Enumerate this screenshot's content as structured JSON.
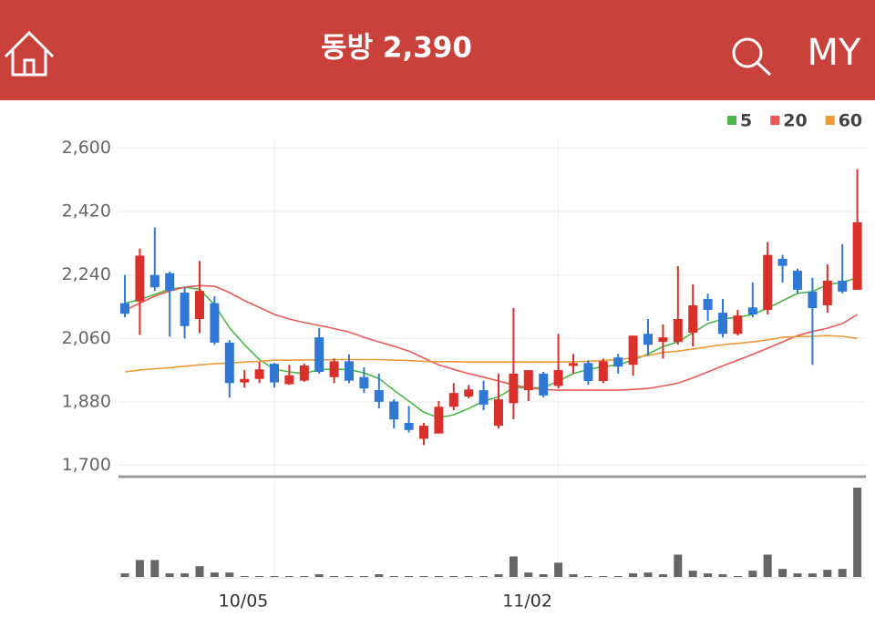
{
  "header": {
    "title": "동방 2,390",
    "my": "MY"
  },
  "chart_data": {
    "type": "candlestick",
    "categories": [
      null,
      null,
      null,
      null,
      null,
      null,
      null,
      null,
      null,
      null,
      "10/05",
      null,
      null,
      null,
      null,
      null,
      null,
      null,
      null,
      null,
      null,
      null,
      null,
      null,
      null,
      null,
      null,
      null,
      null,
      "11/02",
      null,
      null,
      null,
      null,
      null,
      null,
      null,
      null,
      null,
      null,
      null,
      null,
      null,
      null,
      null,
      null,
      null,
      null,
      null,
      null
    ],
    "open": [
      2160,
      2165,
      2240,
      2245,
      2190,
      2115,
      2160,
      2048,
      1935,
      1945,
      1988,
      1930,
      1940,
      2063,
      1950,
      1995,
      1950,
      1913,
      1881,
      1820,
      1775,
      1790,
      1866,
      1895,
      1913,
      1812,
      1876,
      1913,
      1960,
      1925,
      1982,
      1990,
      1939,
      2006,
      1985,
      2073,
      2050,
      2050,
      2076,
      2172,
      2133,
      2073,
      2148,
      2141,
      2286,
      2252,
      2193,
      2154,
      2224,
      2198
    ],
    "high": [
      2240,
      2315,
      2375,
      2250,
      2205,
      2280,
      2180,
      2055,
      1970,
      1993,
      1990,
      1985,
      1988,
      2090,
      2003,
      2015,
      1978,
      1960,
      1887,
      1868,
      1820,
      1882,
      1933,
      1928,
      1940,
      1960,
      2146,
      1970,
      1965,
      2073,
      2016,
      1998,
      2003,
      2016,
      2068,
      2115,
      2100,
      2265,
      2213,
      2187,
      2172,
      2141,
      2219,
      2333,
      2297,
      2258,
      2232,
      2270,
      2328,
      2540
    ],
    "low": [
      2120,
      2070,
      2195,
      2065,
      2060,
      2075,
      2042,
      1892,
      1920,
      1933,
      1920,
      1928,
      1937,
      1960,
      1933,
      1933,
      1905,
      1861,
      1805,
      1793,
      1757,
      1790,
      1856,
      1890,
      1856,
      1804,
      1830,
      1882,
      1892,
      1918,
      1960,
      1928,
      1933,
      1960,
      1954,
      2011,
      2003,
      2042,
      2037,
      2110,
      2063,
      2068,
      2120,
      2128,
      2219,
      2188,
      1985,
      2133,
      2188,
      2198
    ],
    "close": [
      2130,
      2295,
      2205,
      2195,
      2095,
      2195,
      2048,
      1933,
      1945,
      1972,
      1935,
      1955,
      1983,
      1965,
      1995,
      1940,
      1918,
      1880,
      1830,
      1800,
      1812,
      1866,
      1905,
      1915,
      1872,
      1887,
      1960,
      1970,
      1898,
      1970,
      1990,
      1939,
      1995,
      1980,
      2068,
      2042,
      2063,
      2115,
      2154,
      2141,
      2073,
      2125,
      2128,
      2297,
      2266,
      2198,
      2146,
      2224,
      2193,
      2390
    ],
    "up_color": "#d9302c",
    "down_color": "#2f78d3",
    "series": [
      {
        "name": "5",
        "color": "#4cb84a",
        "values": [
          2160,
          2170,
          2185,
          2200,
          2205,
          2200,
          2155,
          2090,
          2042,
          2000,
          1972,
          1965,
          1960,
          1972,
          1972,
          1972,
          1962,
          1946,
          1913,
          1882,
          1850,
          1835,
          1843,
          1861,
          1882,
          1894,
          1920,
          1920,
          1920,
          1939,
          1960,
          1972,
          1980,
          1985,
          1998,
          2016,
          2037,
          2050,
          2076,
          2102,
          2115,
          2120,
          2128,
          2146,
          2167,
          2188,
          2193,
          2213,
          2219,
          2232
        ]
      },
      {
        "name": "20",
        "color": "#ea5a55",
        "values": [
          2140,
          2160,
          2180,
          2195,
          2205,
          2210,
          2208,
          2190,
          2167,
          2148,
          2128,
          2115,
          2105,
          2097,
          2088,
          2078,
          2063,
          2050,
          2038,
          2024,
          2004,
          1985,
          1972,
          1960,
          1950,
          1939,
          1928,
          1920,
          1915,
          1913,
          1913,
          1913,
          1913,
          1913,
          1915,
          1918,
          1925,
          1933,
          1948,
          1965,
          1982,
          1998,
          2015,
          2032,
          2050,
          2068,
          2080,
          2089,
          2102,
          2128
        ]
      },
      {
        "name": "60",
        "color": "#ee9a3a",
        "values": [
          1965,
          1970,
          1974,
          1977,
          1981,
          1985,
          1988,
          1990,
          1993,
          1995,
          1998,
          1998,
          1999,
          1999,
          2000,
          2000,
          2000,
          2000,
          1998,
          1997,
          1995,
          1994,
          1994,
          1993,
          1993,
          1993,
          1993,
          1993,
          1993,
          1993,
          1994,
          1995,
          1997,
          2000,
          2005,
          2012,
          2020,
          2024,
          2030,
          2036,
          2042,
          2046,
          2050,
          2056,
          2063,
          2065,
          2066,
          2068,
          2066,
          2060
        ]
      }
    ],
    "volume": [
      4,
      19,
      19,
      4,
      4,
      12,
      5,
      5,
      1,
      1,
      1,
      1,
      1,
      3,
      1,
      1,
      1,
      3,
      1,
      1,
      1,
      1,
      1,
      1,
      1,
      3,
      23,
      5,
      3,
      16,
      3,
      1,
      1,
      1,
      4,
      5,
      3,
      25,
      7,
      4,
      3,
      1,
      7,
      25,
      9,
      4,
      4,
      8,
      9,
      100
    ],
    "volume_color": "#666666",
    "ylim": [
      1670,
      2630
    ],
    "yticks": [
      {
        "value": 1700,
        "label": "1,700"
      },
      {
        "value": 1880,
        "label": "1,880"
      },
      {
        "value": 2060,
        "label": "2,060"
      },
      {
        "value": 2240,
        "label": "2,240"
      },
      {
        "value": 2420,
        "label": "2,420"
      },
      {
        "value": 2600,
        "label": "2,600"
      }
    ],
    "grid": true
  }
}
